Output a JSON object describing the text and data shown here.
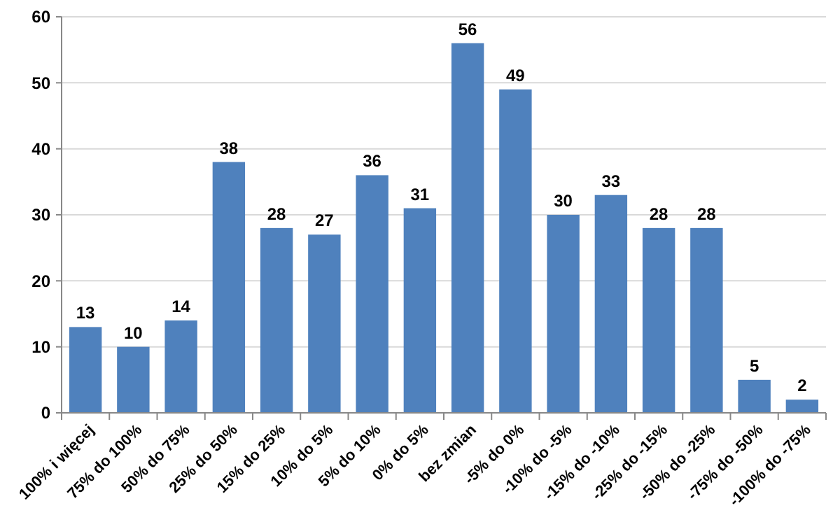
{
  "chart_data": {
    "type": "bar",
    "categories": [
      "100% i więcej",
      "75% do 100%",
      "50% do 75%",
      "25% do 50%",
      "15% do 25%",
      "10% do 5%",
      "5% do 10%",
      "0% do 5%",
      "bez zmian",
      "-5% do 0%",
      "-10% do -5%",
      "-15% do -10%",
      "-25% do -15%",
      "-50% do -25%",
      "-75% do -50%",
      "-100% do -75%"
    ],
    "values": [
      13,
      10,
      14,
      38,
      28,
      27,
      36,
      31,
      56,
      49,
      30,
      33,
      28,
      28,
      5,
      2
    ],
    "color": "#4f81bd",
    "ylim": [
      0,
      60
    ],
    "yticks": [
      0,
      10,
      20,
      30,
      40,
      50,
      60
    ],
    "grid": "y",
    "data_labels": true
  }
}
